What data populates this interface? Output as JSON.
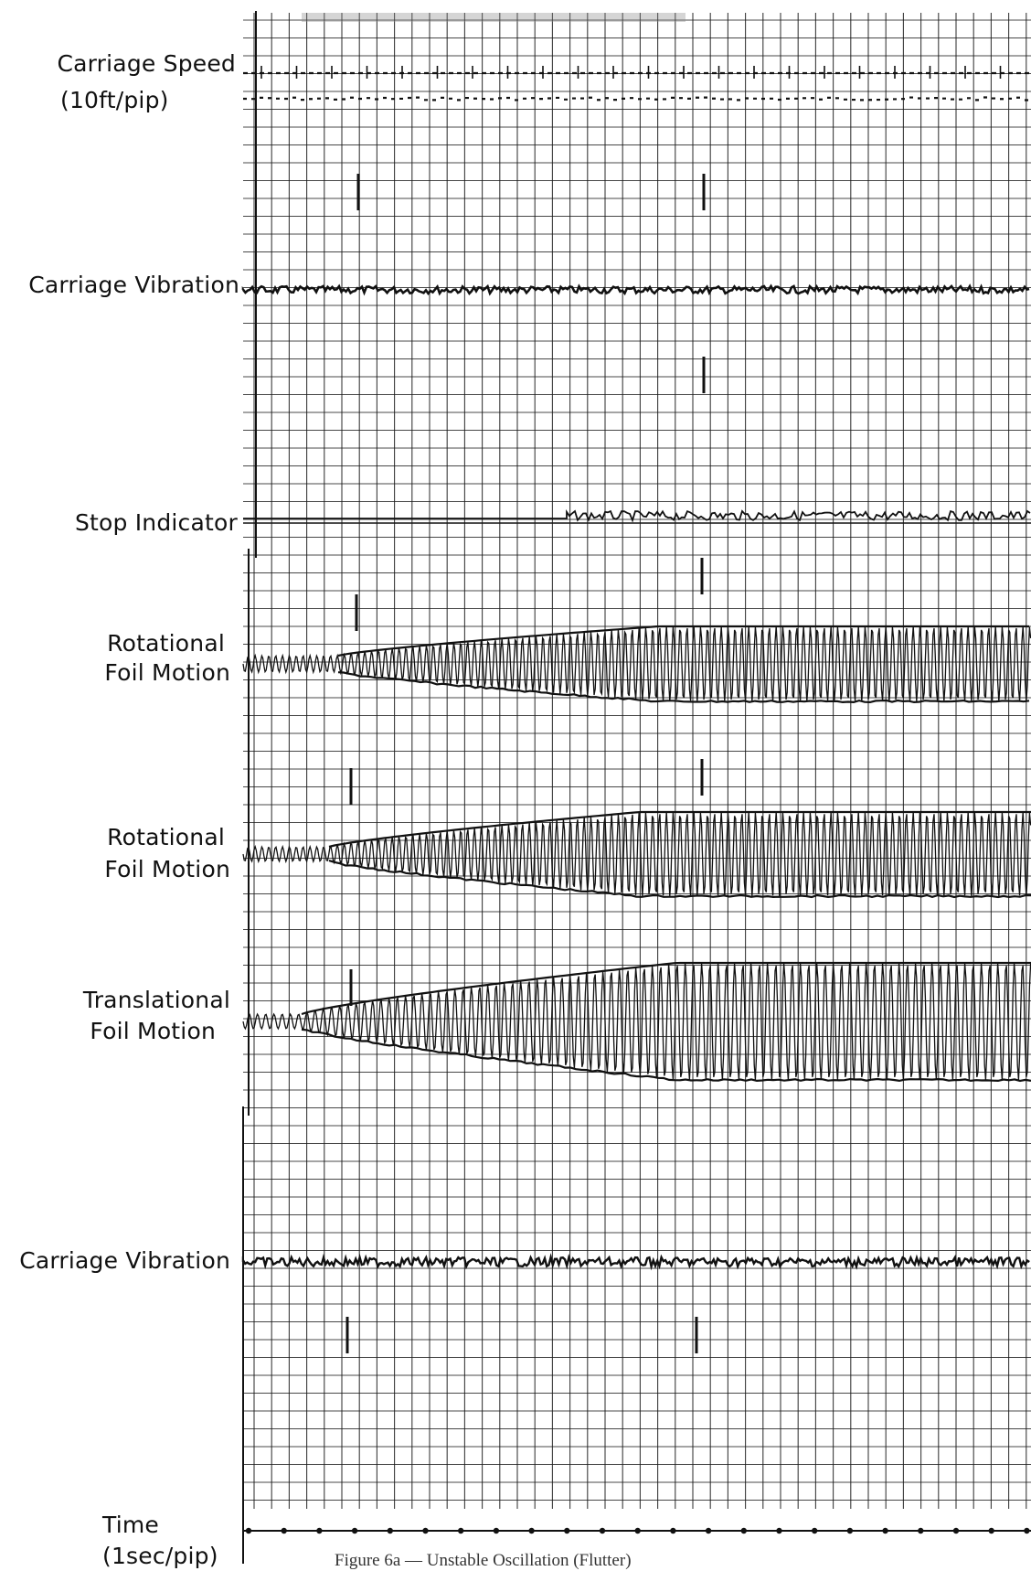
{
  "labels": {
    "carriage_speed": "Carriage Speed",
    "carriage_speed_unit": "(10ft/pip)",
    "carriage_vibration_top": "Carriage Vibration",
    "stop_indicator": "Stop Indicator",
    "rotational_1_a": "Rotational",
    "rotational_1_b": "Foil Motion",
    "rotational_2_a": "Rotational",
    "rotational_2_b": "Foil Motion",
    "translational_a": "Translational",
    "translational_b": "Foil Motion",
    "carriage_vibration_bottom": "Carriage Vibration",
    "time": "Time",
    "time_unit": "(1sec/pip)"
  },
  "caption": "Figure 6a — Unstable Oscillation (Flutter)",
  "colors": {
    "ink": "#111111",
    "grid": "#1a1a1a",
    "paper": "#ffffff"
  },
  "chart_data": {
    "type": "line",
    "traces": [
      "Carriage Speed",
      "Carriage Vibration",
      "Stop Indicator",
      "Rotational Foil Motion",
      "Rotational Foil Motion",
      "Translational Foil Motion",
      "Carriage Vibration",
      "Time"
    ]
  }
}
